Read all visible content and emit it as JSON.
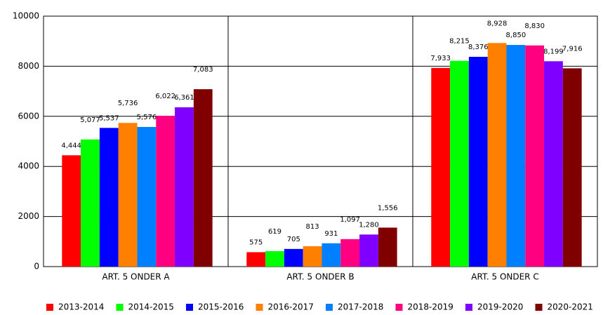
{
  "chart_data": {
    "type": "bar",
    "categories": [
      "ART. 5 ONDER A",
      "ART. 5 ONDER B",
      "ART. 5 ONDER C"
    ],
    "series": [
      {
        "name": "2013-2014",
        "color": "#ff0000",
        "values": [
          4444,
          575,
          7933
        ],
        "value_labels": [
          "4,444",
          "575",
          "7,933"
        ]
      },
      {
        "name": "2014-2015",
        "color": "#00ff00",
        "values": [
          5077,
          619,
          8215
        ],
        "value_labels": [
          "5,077",
          "619",
          "8,215"
        ]
      },
      {
        "name": "2015-2016",
        "color": "#0000ff",
        "values": [
          5537,
          705,
          8376
        ],
        "value_labels": [
          "5,537",
          "705",
          "8,376"
        ]
      },
      {
        "name": "2016-2017",
        "color": "#ff8000",
        "values": [
          5736,
          813,
          8928
        ],
        "value_labels": [
          "5,736",
          "813",
          "8,928"
        ]
      },
      {
        "name": "2017-2018",
        "color": "#0080ff",
        "values": [
          5576,
          931,
          8850
        ],
        "value_labels": [
          "5,576",
          "931",
          "8,850"
        ]
      },
      {
        "name": "2018-2019",
        "color": "#ff0080",
        "values": [
          6022,
          1097,
          8830
        ],
        "value_labels": [
          "6,022",
          "1,097",
          "8,830"
        ]
      },
      {
        "name": "2019-2020",
        "color": "#8000ff",
        "values": [
          6361,
          1280,
          8199
        ],
        "value_labels": [
          "6,361",
          "1,280",
          "8,199"
        ]
      },
      {
        "name": "2020-2021",
        "color": "#800000",
        "values": [
          7083,
          1556,
          7916
        ],
        "value_labels": [
          "7,083",
          "1,556",
          "7,916"
        ]
      }
    ],
    "ylim": [
      0,
      10000
    ],
    "yticks": [
      0,
      2000,
      4000,
      6000,
      8000,
      10000
    ],
    "grid": true,
    "legend": "bottom"
  }
}
